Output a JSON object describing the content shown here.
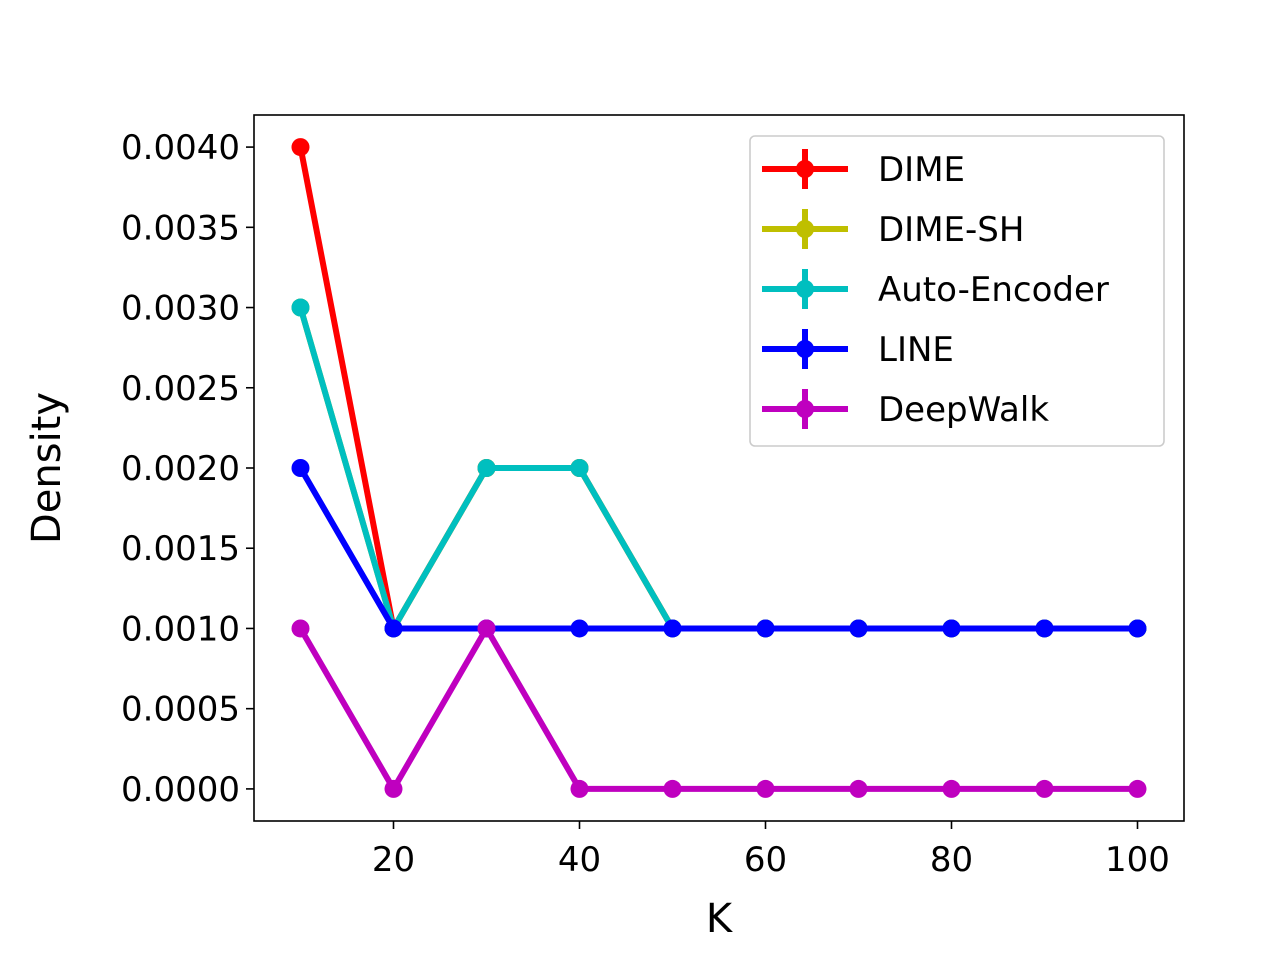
{
  "chart_data": {
    "type": "line",
    "xlabel": "K",
    "ylabel": "Density",
    "xlim": [
      5,
      105
    ],
    "ylim": [
      -0.0002,
      0.0042
    ],
    "xticks": [
      20,
      40,
      60,
      80,
      100
    ],
    "xtick_labels": [
      "20",
      "40",
      "60",
      "80",
      "100"
    ],
    "yticks": [
      0.0,
      0.0005,
      0.001,
      0.0015,
      0.002,
      0.0025,
      0.003,
      0.0035,
      0.004
    ],
    "ytick_labels": [
      "0.0000",
      "0.0005",
      "0.0010",
      "0.0015",
      "0.0020",
      "0.0025",
      "0.0030",
      "0.0035",
      "0.0040"
    ],
    "grid": false,
    "legend_position": "top-right",
    "x": [
      10,
      20,
      30,
      40,
      50,
      60,
      70,
      80,
      90,
      100
    ],
    "series": [
      {
        "name": "DIME",
        "color": "#ff0000",
        "values": [
          0.004,
          0.001,
          0.002,
          0.002,
          0.001,
          0.001,
          0.001,
          0.001,
          0.001,
          0.001
        ]
      },
      {
        "name": "DIME-SH",
        "color": "#bfbf00",
        "values": [
          0.003,
          0.001,
          0.002,
          0.002,
          0.001,
          0.001,
          0.001,
          0.001,
          0.001,
          0.001
        ]
      },
      {
        "name": "Auto-Encoder",
        "color": "#00bfbf",
        "values": [
          0.003,
          0.001,
          0.002,
          0.002,
          0.001,
          0.001,
          0.001,
          0.001,
          0.001,
          0.001
        ]
      },
      {
        "name": "LINE",
        "color": "#0000ff",
        "values": [
          0.002,
          0.001,
          0.001,
          0.001,
          0.001,
          0.001,
          0.001,
          0.001,
          0.001,
          0.001
        ]
      },
      {
        "name": "DeepWalk",
        "color": "#bf00bf",
        "values": [
          0.001,
          0.0,
          0.001,
          0.0,
          0.0,
          0.0,
          0.0,
          0.0,
          0.0,
          0.0
        ]
      }
    ]
  }
}
